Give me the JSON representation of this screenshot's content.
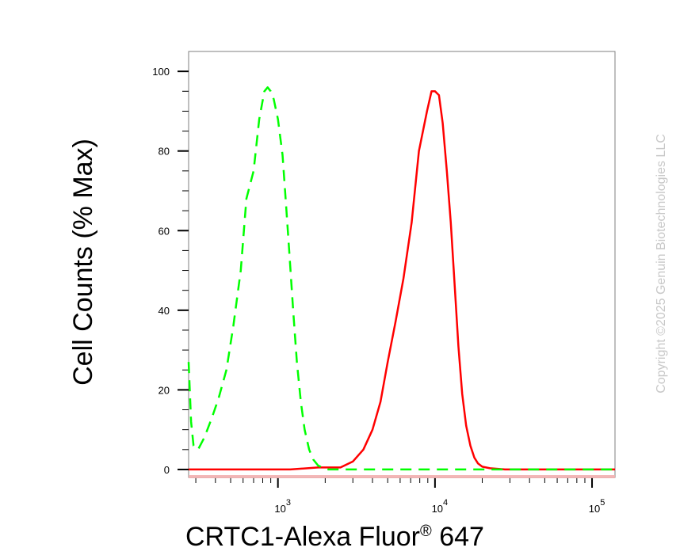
{
  "chart_data": {
    "type": "line",
    "title": "",
    "xlabel": "CRTC1-Alexa Fluor",
    "xlabel_super": "®",
    "xlabel_suffix": " 647",
    "ylabel": "Cell Counts (% Max)",
    "x_scale": "log",
    "xlim": [
      270,
      140000
    ],
    "ylim": [
      -2,
      105
    ],
    "y_ticks": [
      {
        "value": 0,
        "label": "0"
      },
      {
        "value": 20,
        "label": "20"
      },
      {
        "value": 40,
        "label": "40"
      },
      {
        "value": 60,
        "label": "60"
      },
      {
        "value": 80,
        "label": "80"
      },
      {
        "value": 100,
        "label": "100"
      }
    ],
    "x_ticks": [
      {
        "value": 1000,
        "base": "10",
        "exp": "3"
      },
      {
        "value": 10000,
        "base": "10",
        "exp": "4"
      },
      {
        "value": 100000,
        "base": "10",
        "exp": "5"
      }
    ],
    "grid": false,
    "legend": "none",
    "series": [
      {
        "color": "#ff0000",
        "style": "solid",
        "x": [
          270,
          1200,
          1800,
          2500,
          3000,
          3500,
          4000,
          4500,
          5000,
          5600,
          6300,
          7100,
          7900,
          8900,
          9500,
          10000,
          10600,
          11200,
          11900,
          12600,
          13400,
          14100,
          14900,
          15800,
          16800,
          17800,
          18800,
          20000,
          22400,
          28000,
          140000
        ],
        "y": [
          0,
          0,
          0.5,
          0.5,
          2,
          5,
          10,
          17,
          27,
          37,
          48,
          62,
          80,
          90,
          95,
          95,
          94,
          87,
          75,
          62,
          45,
          31,
          19,
          11,
          6,
          3,
          1.5,
          0.7,
          0.3,
          0,
          0
        ]
      },
      {
        "color": "#00ff00",
        "style": "dashed",
        "x": [
          270,
          280,
          290,
          310,
          340,
          380,
          420,
          470,
          520,
          580,
          630,
          700,
          760,
          820,
          860,
          900,
          940,
          1000,
          1070,
          1120,
          1180,
          1250,
          1320,
          1400,
          1480,
          1580,
          1680,
          1800,
          1950,
          2100,
          140000
        ],
        "y": [
          27,
          12,
          6,
          5,
          8,
          13,
          18,
          25,
          36,
          50,
          68,
          75,
          88,
          95,
          96,
          95,
          93,
          88,
          79,
          68,
          55,
          40,
          27,
          17,
          10,
          5,
          2.5,
          1,
          0.3,
          0,
          0
        ]
      }
    ]
  },
  "watermark": "Copyright ©2025 Genuin Biotechnologies LLC"
}
